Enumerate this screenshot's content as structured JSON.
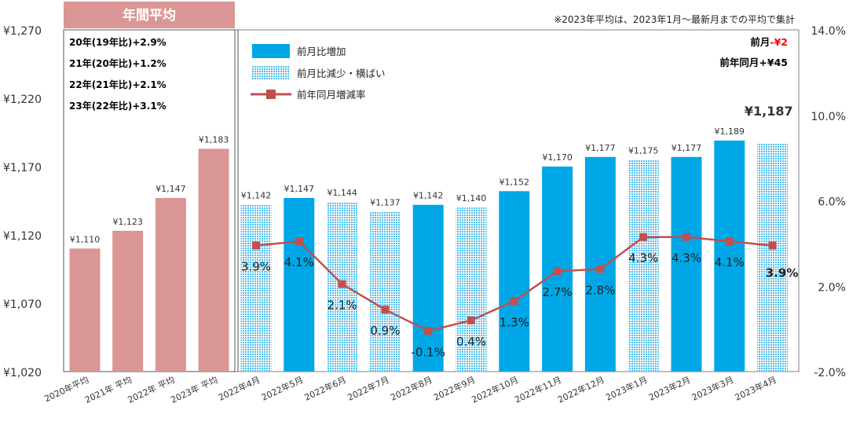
{
  "chart_data": {
    "type": "bar",
    "panel_title": "年間平均",
    "note": "※2023年平均は、2023年1月～最新月までの平均で集計",
    "annual": {
      "categories": [
        "2020年平均",
        "2021年 平均",
        "2022年 平均",
        "2023年 平均"
      ],
      "values": [
        1110,
        1123,
        1147,
        1183
      ],
      "labels": [
        "¥1,110",
        "¥1,123",
        "¥1,147",
        "¥1,183"
      ],
      "color": "#d99694",
      "growth_notes": [
        "20年(19年比)+2.9%",
        "21年(20年比)+1.2%",
        "22年(21年比)+2.1%",
        "23年(22年比)+3.1%"
      ]
    },
    "monthly": {
      "categories": [
        "2022年4月",
        "2022年5月",
        "2022年6月",
        "2022年7月",
        "2022年8月",
        "2022年9月",
        "2022年10月",
        "2022年11月",
        "2022年12月",
        "2023年1月",
        "2023年2月",
        "2023年3月",
        "2023年4月"
      ],
      "values": [
        1142,
        1147,
        1144,
        1137,
        1142,
        1140,
        1152,
        1170,
        1177,
        1175,
        1177,
        1189,
        1187
      ],
      "labels": [
        "¥1,142",
        "¥1,147",
        "¥1,144",
        "¥1,137",
        "¥1,142",
        "¥1,140",
        "¥1,152",
        "¥1,170",
        "¥1,177",
        "¥1,175",
        "¥1,177",
        "¥1,189",
        "¥1,187"
      ],
      "bar_style": [
        "dec",
        "inc",
        "dec",
        "dec",
        "inc",
        "dec",
        "inc",
        "inc",
        "inc",
        "dec",
        "inc",
        "inc",
        "dec"
      ],
      "yoy_rate": [
        3.9,
        4.1,
        2.1,
        0.9,
        -0.1,
        0.4,
        1.3,
        2.7,
        2.8,
        4.3,
        4.3,
        4.1,
        3.9
      ],
      "yoy_labels": [
        "3.9%",
        "4.1%",
        "2.1%",
        "0.9%",
        "-0.1%",
        "0.4%",
        "1.3%",
        "2.7%",
        "2.8%",
        "4.3%",
        "4.3%",
        "4.1%",
        "3.9%"
      ]
    },
    "legend": [
      "前月比増加",
      "前月比減少・横ばい",
      "前年同月増減率"
    ],
    "left_axis": {
      "min": 1020,
      "max": 1270,
      "ticks": [
        "¥1,270",
        "¥1,220",
        "¥1,170",
        "¥1,120",
        "¥1,070",
        "¥1,020"
      ],
      "tick_values": [
        1270,
        1220,
        1170,
        1120,
        1070,
        1020
      ]
    },
    "right_axis": {
      "min": -2.0,
      "max": 14.0,
      "ticks": [
        "14.0%",
        "10.0%",
        "6.0%",
        "2.0%",
        "-2.0%"
      ],
      "tick_values": [
        14,
        10,
        6,
        2,
        -2
      ]
    },
    "annotations": {
      "mom_prefix": "前月",
      "mom_value": "-¥2",
      "yoy_text": "前年同月+¥45"
    },
    "colors": {
      "increase": "#00a7e6",
      "decrease": "#8dd3f2",
      "line": "#c0504d",
      "negative_label": "#ff0000"
    }
  }
}
